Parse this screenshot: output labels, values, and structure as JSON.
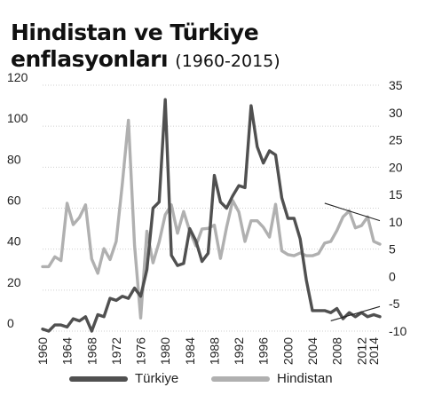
{
  "title": {
    "line1": "Hindistan ve Türkiye",
    "line2": "enflasyonları",
    "period": "(1960-2015)"
  },
  "chart_data": {
    "type": "line",
    "title": "Hindistan ve Türkiye enflasyonları (1960-2015)",
    "x": [
      1960,
      1961,
      1962,
      1963,
      1964,
      1965,
      1966,
      1967,
      1968,
      1969,
      1970,
      1971,
      1972,
      1973,
      1974,
      1975,
      1976,
      1977,
      1978,
      1979,
      1980,
      1981,
      1982,
      1983,
      1984,
      1985,
      1986,
      1987,
      1988,
      1989,
      1990,
      1991,
      1992,
      1993,
      1994,
      1995,
      1996,
      1997,
      1998,
      1999,
      2000,
      2001,
      2002,
      2003,
      2004,
      2005,
      2006,
      2007,
      2008,
      2009,
      2010,
      2011,
      2012,
      2013,
      2014,
      2015
    ],
    "x_tick_labels": [
      "1960",
      "1964",
      "1968",
      "1972",
      "1976",
      "1980",
      "1984",
      "1988",
      "1992",
      "1996",
      "2000",
      "2004",
      "2008",
      "2012",
      "2014"
    ],
    "xlim": [
      1960,
      2015
    ],
    "left_axis": {
      "ylim": [
        0,
        120
      ],
      "ticks": [
        "0",
        "20",
        "40",
        "60",
        "80",
        "100",
        "120"
      ]
    },
    "right_axis": {
      "ylim": [
        -10,
        35
      ],
      "ticks": [
        "-10",
        "-5",
        "0",
        "5",
        "10",
        "15",
        "20",
        "25",
        "30",
        "35"
      ]
    },
    "grid": "horizontal",
    "legend": {
      "position": "bottom"
    },
    "series": [
      {
        "name": "Türkiye",
        "axis": "left",
        "color": "#505050",
        "values": [
          1,
          0,
          3,
          3,
          2,
          6,
          5,
          7,
          0,
          8,
          7,
          16,
          15,
          17,
          16,
          21,
          17,
          30,
          60,
          63,
          113,
          37,
          32,
          33,
          50,
          44,
          34,
          38,
          76,
          63,
          60,
          66,
          71,
          70,
          110,
          90,
          82,
          88,
          86,
          65,
          55,
          55,
          45,
          25,
          10,
          10,
          10,
          9,
          11,
          6,
          9,
          7,
          9,
          7,
          8,
          7
        ]
      },
      {
        "name": "Hindistan",
        "axis": "right",
        "color": "#b0b0b0",
        "values": [
          1.8,
          1.8,
          3.6,
          2.9,
          13.4,
          9.5,
          10.8,
          13.1,
          3.2,
          0.6,
          5.1,
          3.1,
          6.4,
          16.9,
          28.6,
          5.7,
          -7.6,
          8.3,
          2.5,
          6.3,
          11.3,
          13.1,
          7.9,
          11.9,
          8.3,
          5.6,
          8.7,
          8.8,
          9.4,
          3.3,
          9.0,
          13.9,
          11.8,
          6.4,
          10.2,
          10.2,
          9.0,
          7.2,
          13.2,
          4.7,
          4.0,
          3.8,
          4.3,
          3.8,
          3.8,
          4.2,
          6.1,
          6.4,
          8.4,
          10.9,
          12.0,
          8.9,
          9.3,
          10.9,
          6.4,
          5.9
        ]
      }
    ],
    "annotations": [
      {
        "type": "trend-line",
        "series": "Hindistan",
        "from": [
          2006,
          13.4
        ],
        "to": [
          2015,
          10.2
        ]
      },
      {
        "type": "trend-line",
        "series": "Türkiye",
        "from": [
          2007,
          5
        ],
        "to": [
          2015,
          12
        ]
      }
    ]
  }
}
